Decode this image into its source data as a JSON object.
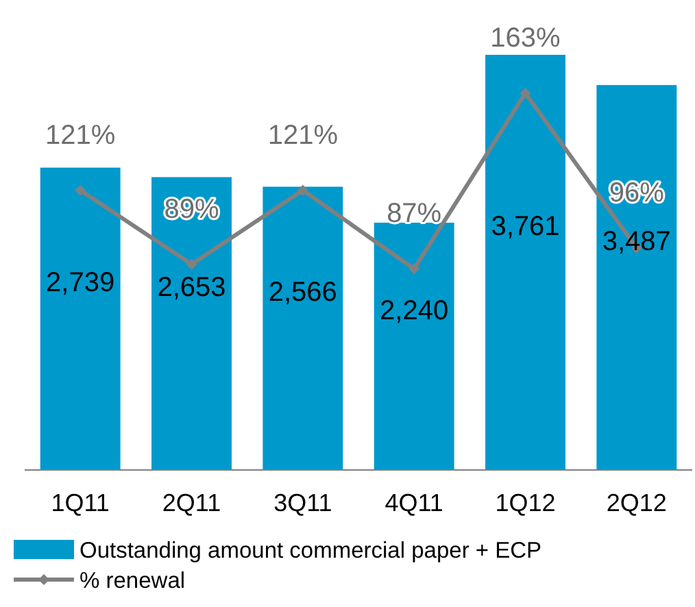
{
  "chart_data": {
    "type": "bar",
    "categories": [
      "1Q11",
      "2Q11",
      "3Q11",
      "4Q11",
      "1Q12",
      "2Q12"
    ],
    "series": [
      {
        "name": "Outstanding amount commercial paper + ECP",
        "color": "#0099cc",
        "values": [
          2739,
          2653,
          2566,
          2240,
          3761,
          3487
        ],
        "value_labels": [
          "2,739",
          "2,653",
          "2,566",
          "2,240",
          "3,761",
          "3,487"
        ]
      },
      {
        "name": "% renewal",
        "type": "line",
        "axis": "y2",
        "color": "#808080",
        "values": [
          121,
          89,
          121,
          87,
          163,
          96
        ],
        "value_labels": [
          "121%",
          "89%",
          "121%",
          "87%",
          "163%",
          "96%"
        ]
      }
    ],
    "legend": "bottom",
    "marker": "diamond",
    "line_style": "solid"
  }
}
